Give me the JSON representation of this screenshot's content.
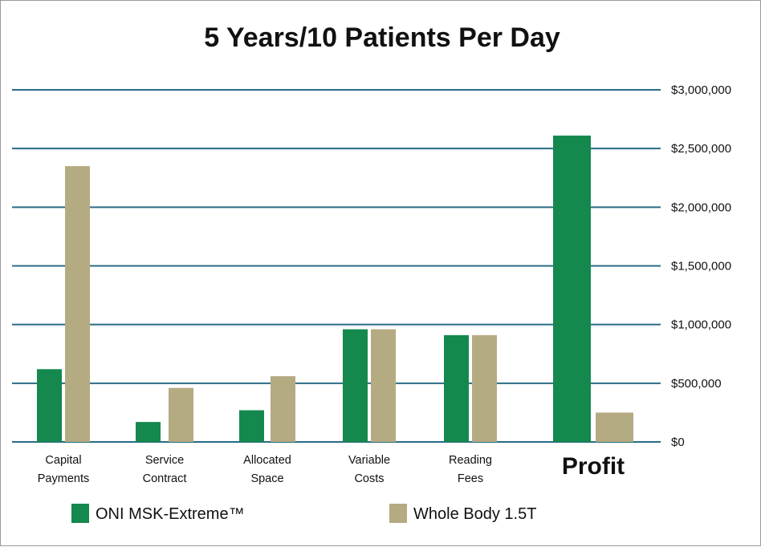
{
  "chart_data": {
    "type": "bar",
    "title": "5 Years/10 Patients Per Day",
    "xlabel": "",
    "ylabel": "",
    "ylim": [
      0,
      3000000
    ],
    "y_ticks": [
      {
        "value": 0,
        "label": "$0"
      },
      {
        "value": 500000,
        "label": "$500,000"
      },
      {
        "value": 1000000,
        "label": "$1,000,000"
      },
      {
        "value": 1500000,
        "label": "$1,500,000"
      },
      {
        "value": 2000000,
        "label": "$2,000,000"
      },
      {
        "value": 2500000,
        "label": "$2,500,000"
      },
      {
        "value": 3000000,
        "label": "$3,000,000"
      }
    ],
    "categories": [
      {
        "lines": [
          "Capital",
          "Payments"
        ],
        "emphasis": false
      },
      {
        "lines": [
          "Service",
          "Contract"
        ],
        "emphasis": false
      },
      {
        "lines": [
          "Allocated",
          "Space"
        ],
        "emphasis": false
      },
      {
        "lines": [
          "Variable",
          "Costs"
        ],
        "emphasis": false
      },
      {
        "lines": [
          "Reading",
          "Fees"
        ],
        "emphasis": false
      },
      {
        "lines": [
          "Profit"
        ],
        "emphasis": true
      }
    ],
    "series": [
      {
        "name": "ONI MSK-Extreme™",
        "color": "#15884e",
        "values": [
          620000,
          170000,
          270000,
          960000,
          910000,
          2610000
        ]
      },
      {
        "name": "Whole Body 1.5T",
        "color": "#b5ab82",
        "values": [
          2350000,
          460000,
          560000,
          960000,
          910000,
          250000
        ]
      }
    ],
    "grid": true,
    "gridline_color": "#2a6c86",
    "legend_position": "bottom"
  }
}
